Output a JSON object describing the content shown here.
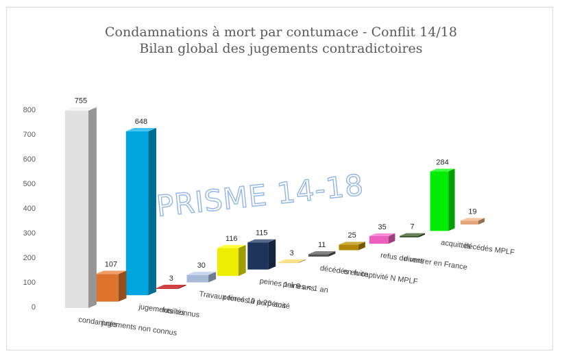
{
  "chart_data": {
    "type": "bar",
    "title": "Condamnations à mort par contumace - Conflit 14/18",
    "subtitle": "Bilan global des jugements contradictoires",
    "watermark": "PRISME 14-18",
    "ylim": [
      0,
      800
    ],
    "yticks": [
      "0",
      "100",
      "200",
      "300",
      "400",
      "500",
      "600",
      "700",
      "800"
    ],
    "categories": [
      "condamnés",
      "jugements non connus",
      "jugements connus",
      "fusillés",
      "Travaux forcés à perpétuité",
      "peines 10 à 20 ans",
      "peines 1 à 9 ans",
      "peines < 1 an",
      "décédés en captivité N MPLF",
      "en fuite",
      "refus de rentrer en France",
      "divers",
      "acquittés",
      "décédés MPLF"
    ],
    "values": [
      755,
      107,
      648,
      3,
      30,
      116,
      115,
      3,
      11,
      25,
      35,
      7,
      284,
      19
    ],
    "colors": [
      "#f2f2f2",
      "#ed7d31",
      "#00b0f0",
      "#c00000",
      "#b4c7e7",
      "#ffff00",
      "#203864",
      "#ffd966",
      "#595959",
      "#bf9000",
      "#ff66cc",
      "#375623",
      "#00ff00",
      "#f4b183"
    ],
    "grid": false,
    "legend": "none"
  }
}
